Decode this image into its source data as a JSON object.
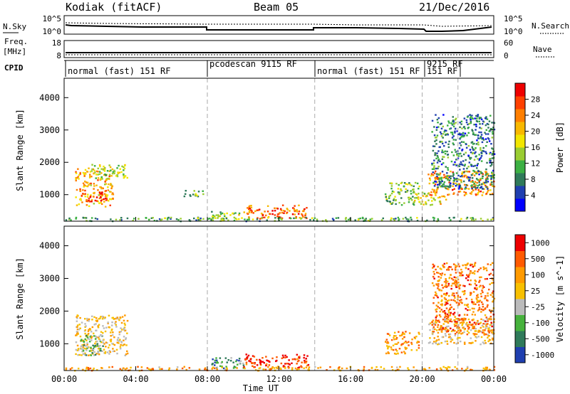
{
  "chart_data": {
    "type": "heatmap",
    "header": {
      "station": "Kodiak (fitACF)",
      "beam": "Beam 05",
      "date": "21/Dec/2016"
    },
    "aux_panels": {
      "noise": {
        "left_label": "N.Sky",
        "right_label": "N.Search",
        "left_ticks": [
          "10^5",
          "10^0"
        ],
        "right_ticks": [
          "10^5",
          "10^0"
        ]
      },
      "freq": {
        "left_label_line1": "Freq.",
        "left_label_line2": "[MHz]",
        "right_label": "Nave",
        "left_ticks": [
          "18",
          "8"
        ],
        "right_ticks": [
          "60",
          "0"
        ]
      },
      "cpid": {
        "label": "CPID",
        "modes": [
          {
            "label": "normal (fast) 151 RF",
            "start_h": 0,
            "end_h": 8
          },
          {
            "label": "pcodescan 9115 RF",
            "start_h": 8,
            "end_h": 14
          },
          {
            "label": "normal (fast) 151 RF",
            "start_h": 14,
            "end_h": 20
          },
          {
            "label": "9215 RF",
            "start_h": 20,
            "end_h": 22
          },
          {
            "label": "151 RF",
            "start_h": 20,
            "end_h": 22
          }
        ]
      }
    },
    "xlabel": "Time UT",
    "xlim_hours": [
      0,
      24
    ],
    "x_ticks": [
      "00:00",
      "04:00",
      "08:00",
      "12:00",
      "16:00",
      "20:00",
      "00:00"
    ],
    "x_tick_hours": [
      0,
      4,
      8,
      12,
      16,
      20,
      24
    ],
    "dashed_lines_hours": [
      8,
      14,
      20,
      22
    ],
    "ylabel": "Slant Range [km]",
    "ylim_km": [
      180,
      4600
    ],
    "y_ticks": [
      1000,
      2000,
      3000,
      4000
    ],
    "grid": false,
    "panels": [
      {
        "name": "power",
        "colorbar_label": "Power [dB]",
        "colorbar_ticks": [
          "4",
          "8",
          "12",
          "16",
          "20",
          "24",
          "28"
        ],
        "colorbar_colors": [
          "#0000ff",
          "#1f3fb0",
          "#2f7a5a",
          "#3cb043",
          "#9acd32",
          "#f2e600",
          "#f8b800",
          "#ff7f00",
          "#ff4000",
          "#ee0000"
        ],
        "regions": [
          {
            "t": [
              0.6,
              2.7
            ],
            "r": [
              650,
              1850
            ],
            "level": 0.65
          },
          {
            "t": [
              0.9,
              2.3
            ],
            "r": [
              780,
              1100
            ],
            "level": 0.95
          },
          {
            "t": [
              1.5,
              3.5
            ],
            "r": [
              1500,
              1950
            ],
            "level": 0.45
          },
          {
            "t": [
              6.6,
              7.8
            ],
            "r": [
              950,
              1150
            ],
            "level": 0.4
          },
          {
            "t": [
              8.2,
              10.0
            ],
            "r": [
              250,
              500
            ],
            "level": 0.45
          },
          {
            "t": [
              10.0,
              13.6
            ],
            "r": [
              280,
              700
            ],
            "level": 0.8
          },
          {
            "t": [
              17.9,
              19.8
            ],
            "r": [
              700,
              1400
            ],
            "level": 0.4
          },
          {
            "t": [
              19.5,
              21.3
            ],
            "r": [
              700,
              1100
            ],
            "level": 0.55
          },
          {
            "t": [
              20.3,
              24.0
            ],
            "r": [
              1000,
              1750
            ],
            "level": 0.75
          },
          {
            "t": [
              20.5,
              24.0
            ],
            "r": [
              1200,
              3500
            ],
            "level": 0.25
          },
          {
            "t": [
              0.0,
              24.0
            ],
            "r": [
              200,
              320
            ],
            "level": 0.35
          }
        ]
      },
      {
        "name": "velocity",
        "colorbar_label": "Velocity [m s^-1]",
        "colorbar_ticks": [
          "1000",
          "500",
          "100",
          "25",
          "-25",
          "-100",
          "-500",
          "-1000"
        ],
        "colorbar_colors": [
          "#1f3fb0",
          "#2f7a5a",
          "#46b23c",
          "#bbbbbb",
          "#f8c000",
          "#ff9a00",
          "#ff5a00",
          "#ee0000"
        ],
        "regions": [
          {
            "t": [
              0.6,
              3.5
            ],
            "r": [
              650,
              1900
            ],
            "level": 0.55
          },
          {
            "t": [
              0.9,
              2.2
            ],
            "r": [
              650,
              1300
            ],
            "level": 0.3
          },
          {
            "t": [
              8.2,
              10.0
            ],
            "r": [
              250,
              600
            ],
            "level": 0.25
          },
          {
            "t": [
              10.0,
              13.6
            ],
            "r": [
              280,
              700
            ],
            "level": 0.9
          },
          {
            "t": [
              17.9,
              19.8
            ],
            "r": [
              700,
              1400
            ],
            "level": 0.7
          },
          {
            "t": [
              20.3,
              24.0
            ],
            "r": [
              1000,
              1800
            ],
            "level": 0.55
          },
          {
            "t": [
              20.5,
              24.0
            ],
            "r": [
              1300,
              3500
            ],
            "level": 0.75
          },
          {
            "t": [
              0.0,
              24.0
            ],
            "r": [
              200,
              320
            ],
            "level": 0.65
          }
        ]
      }
    ]
  }
}
